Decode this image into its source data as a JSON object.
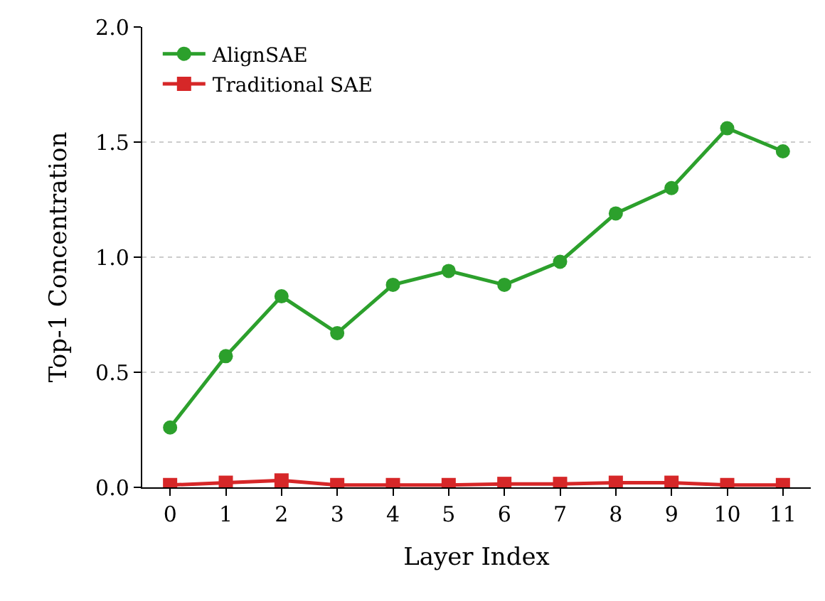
{
  "chart_data": {
    "type": "line",
    "xlabel": "Layer Index",
    "ylabel": "Top-1 Concentration",
    "x": [
      0,
      1,
      2,
      3,
      4,
      5,
      6,
      7,
      8,
      9,
      10,
      11
    ],
    "series": [
      {
        "name": "AlignSAE",
        "color": "#2ca02c",
        "marker": "circle",
        "values": [
          0.26,
          0.57,
          0.83,
          0.67,
          0.88,
          0.94,
          0.88,
          0.98,
          1.19,
          1.3,
          1.56,
          1.46
        ]
      },
      {
        "name": "Traditional SAE",
        "color": "#d62728",
        "marker": "square",
        "values": [
          0.01,
          0.02,
          0.03,
          0.01,
          0.01,
          0.01,
          0.015,
          0.015,
          0.02,
          0.02,
          0.01,
          0.01
        ]
      }
    ],
    "xlim": [
      -0.5,
      11.5
    ],
    "xticks": [
      0,
      1,
      2,
      3,
      4,
      5,
      6,
      7,
      8,
      9,
      10,
      11
    ],
    "ylim": [
      0,
      2.0
    ],
    "yticks": [
      {
        "value": 0,
        "label": "0.0"
      },
      {
        "value": 0.5,
        "label": "0.5"
      },
      {
        "value": 1.0,
        "label": "1.0"
      },
      {
        "value": 1.5,
        "label": "1.5"
      },
      {
        "value": 2.0,
        "label": "2.0"
      }
    ],
    "grid": "y",
    "legend": "top left",
    "line_style": "solid"
  }
}
